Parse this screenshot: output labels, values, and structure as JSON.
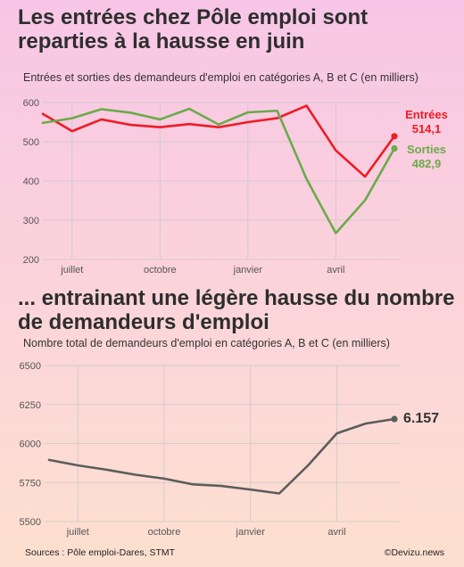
{
  "chart1": {
    "title": "Les entrées chez Pôle emploi sont reparties à la hausse en juin",
    "subtitle": "Entrées et sorties des demandeurs d'emploi en catégories A, B et C (en milliers)",
    "chart_data": {
      "type": "line",
      "x": [
        "juin",
        "juillet",
        "août",
        "septembre",
        "octobre",
        "novembre",
        "décembre",
        "janvier",
        "février",
        "mars",
        "avril",
        "mai",
        "juin"
      ],
      "x_tick_labels": [
        "juillet",
        "octobre",
        "janvier",
        "avril"
      ],
      "x_tick_positions": [
        "juillet",
        "octobre",
        "janvier",
        "avril"
      ],
      "ylim": [
        200,
        600
      ],
      "y_ticks": [
        200,
        300,
        400,
        500,
        600
      ],
      "grid": true,
      "series": [
        {
          "name": "Entrées",
          "color": "#ee1c25",
          "values": [
            571,
            527,
            557,
            543,
            537,
            545,
            537,
            550,
            560,
            592,
            478,
            411,
            514.1
          ],
          "end_label": "514,1"
        },
        {
          "name": "Sorties",
          "color": "#6aab4a",
          "values": [
            548,
            560,
            583,
            574,
            557,
            584,
            544,
            575,
            579,
            405,
            267,
            351,
            482.9
          ],
          "end_label": "482,9"
        }
      ]
    }
  },
  "chart2": {
    "title": "... entrainant une légère hausse du nombre de demandeurs d'emploi",
    "subtitle": "Nombre total de demandeurs d'emploi en catégories A, B et C (en milliers)",
    "chart_data": {
      "type": "line",
      "x": [
        "juin",
        "juillet",
        "août",
        "septembre",
        "octobre",
        "novembre",
        "décembre",
        "janvier",
        "février",
        "mars",
        "avril",
        "mai",
        "juin"
      ],
      "x_tick_labels": [
        "juillet",
        "octobre",
        "janvier",
        "avril"
      ],
      "x_tick_positions": [
        "juillet",
        "octobre",
        "janvier",
        "avril"
      ],
      "ylim": [
        5500,
        6500
      ],
      "y_ticks": [
        5500,
        5750,
        6000,
        6250,
        6500
      ],
      "grid": true,
      "series": [
        {
          "color": "#5c5c5c",
          "values": [
            5895,
            5860,
            5832,
            5800,
            5775,
            5738,
            5728,
            5705,
            5680,
            5860,
            6065,
            6128,
            6157
          ],
          "end_label": "6.157"
        }
      ]
    }
  },
  "footer": {
    "sources": "Sources :  Pôle emploi-Dares, STMT",
    "brand": "©Devizu.news"
  }
}
